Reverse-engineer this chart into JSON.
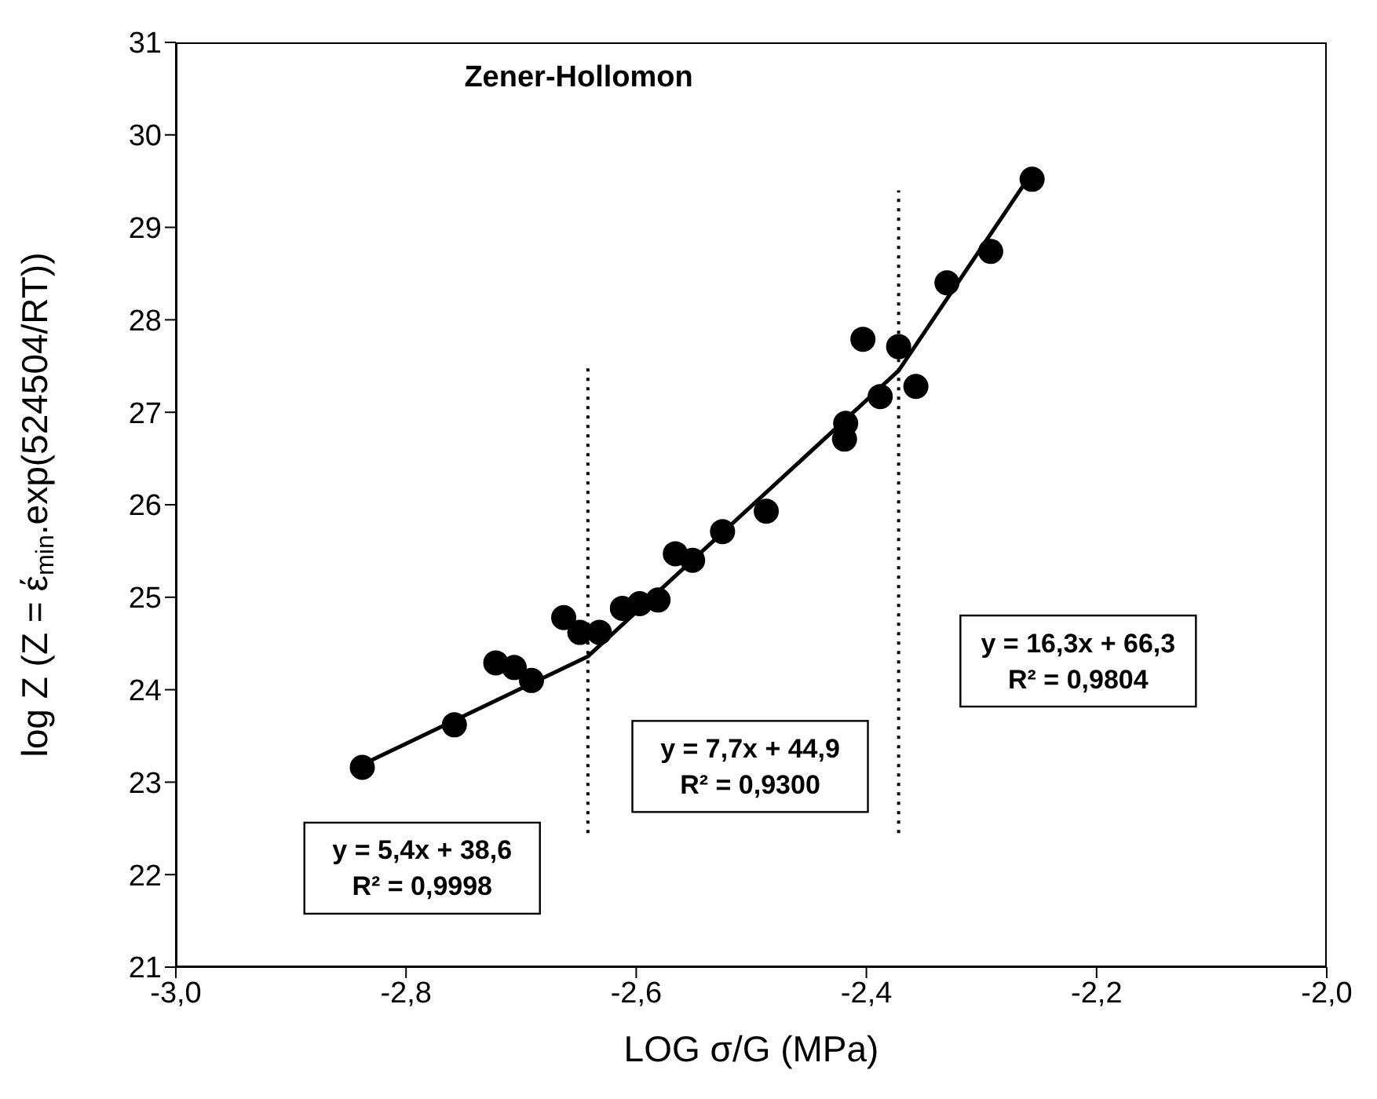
{
  "chart_data": {
    "type": "scatter",
    "title": "Zener-Hollomon",
    "xlabel": "LOG σ/G (MPa)",
    "ylabel": "log Z (Z = έ$_{min}$.exp(524504/RT))",
    "xlim": [
      -3,
      -2
    ],
    "xticks": [
      {
        "value": -3,
        "label": "-3,0"
      },
      {
        "value": -2.8,
        "label": "-2,8"
      },
      {
        "value": -2.6,
        "label": "-2,6"
      },
      {
        "value": -2.4,
        "label": "-2,4"
      },
      {
        "value": -2.2,
        "label": "-2,2"
      },
      {
        "value": -2,
        "label": "-2,0"
      }
    ],
    "ylim": [
      21,
      31
    ],
    "yticks": [
      21,
      22,
      23,
      24,
      25,
      26,
      27,
      28,
      29,
      30,
      31
    ],
    "marker": "circle",
    "x": [
      -2.838,
      -2.758,
      -2.722,
      -2.706,
      -2.691,
      -2.663,
      -2.649,
      -2.632,
      -2.612,
      -2.597,
      -2.581,
      -2.566,
      -2.551,
      -2.525,
      -2.487,
      -2.418,
      -2.419,
      -2.403,
      -2.388,
      -2.372,
      -2.357,
      -2.33,
      -2.292,
      -2.256
    ],
    "series": [
      {
        "color": "#000000",
        "values": [
          23.16,
          23.62,
          24.29,
          24.24,
          24.1,
          24.78,
          24.62,
          24.62,
          24.88,
          24.93,
          24.97,
          25.47,
          25.4,
          25.71,
          25.93,
          26.88,
          26.71,
          27.79,
          27.17,
          27.71,
          27.28,
          28.4,
          28.74,
          29.52
        ]
      },
      {
        "type": "line",
        "color": "#000000",
        "line_style": "solid",
        "marker": "none",
        "x": [
          -2.838,
          -2.642,
          -2.372,
          -2.26
        ],
        "values": [
          23.19,
          24.36,
          27.45,
          29.52
        ]
      },
      {
        "type": "line",
        "color": "#000000",
        "line_style": "dotted",
        "marker": "none",
        "x": [
          -2.642,
          -2.642
        ],
        "values": [
          22.45,
          27.5
        ]
      },
      {
        "type": "line",
        "color": "#000000",
        "line_style": "dotted",
        "marker": "none",
        "x": [
          -2.372,
          -2.372
        ],
        "values": [
          22.45,
          29.4
        ]
      }
    ],
    "annotations": [
      "y = 5,4x + 38,6\nR² = 0,9998",
      "y = 7,7x + 44,9\nR² = 0,9300",
      "y = 16,3x + 66,3\nR² = 0,9804"
    ]
  }
}
